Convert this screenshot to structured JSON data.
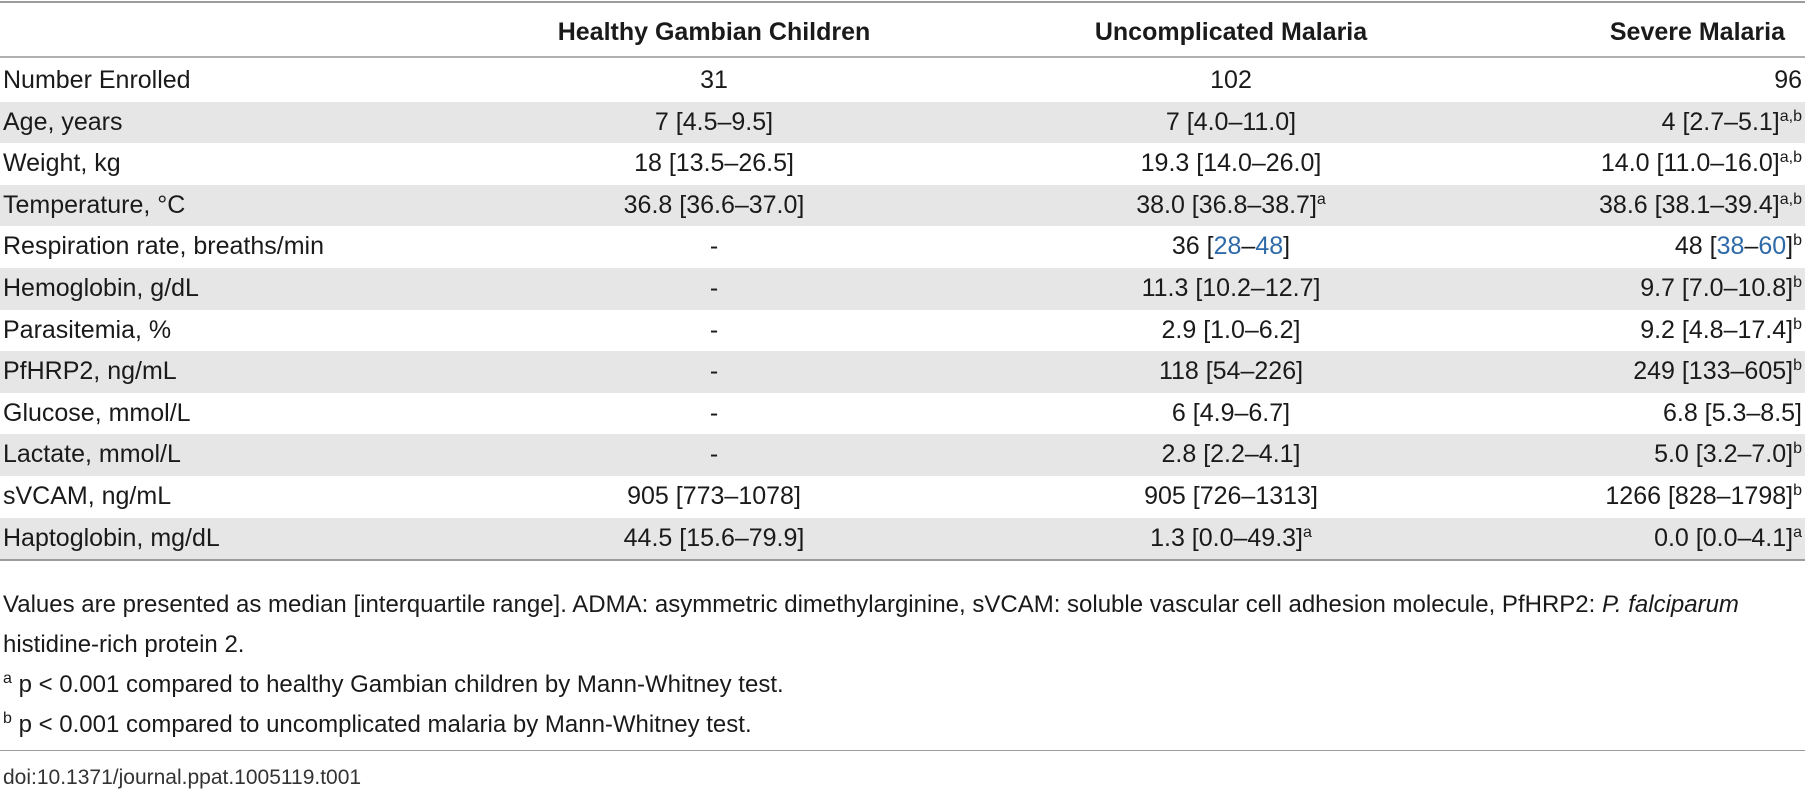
{
  "table": {
    "headers": [
      "",
      "Healthy Gambian Children",
      "Uncomplicated Malaria",
      "Severe Malaria"
    ],
    "rows": [
      {
        "label": "Number Enrolled",
        "healthy": "31",
        "healthy_sup": "",
        "uncomp": "102",
        "uncomp_sup": "",
        "severe": "96",
        "severe_sup": ""
      },
      {
        "label": "Age, years",
        "healthy": "7 [4.5–9.5]",
        "healthy_sup": "",
        "uncomp": "7 [4.0–11.0]",
        "uncomp_sup": "",
        "severe": "4 [2.7–5.1]",
        "severe_sup": "a,b"
      },
      {
        "label": "Weight, kg",
        "healthy": "18 [13.5–26.5]",
        "healthy_sup": "",
        "uncomp": "19.3 [14.0–26.0]",
        "uncomp_sup": "",
        "severe": "14.0 [11.0–16.0]",
        "severe_sup": "a,b"
      },
      {
        "label": "Temperature, °C",
        "healthy": "36.8 [36.6–37.0]",
        "healthy_sup": "",
        "uncomp": "38.0 [36.8–38.7]",
        "uncomp_sup": "a",
        "severe": "38.6 [38.1–39.4]",
        "severe_sup": "a,b"
      },
      {
        "label": "Respiration rate, breaths/min",
        "healthy": "-",
        "healthy_sup": "",
        "uncomp_pre": "36 [",
        "uncomp_link1": "28",
        "uncomp_dash": "–",
        "uncomp_link2": "48",
        "uncomp_post": "]",
        "uncomp_sup": "",
        "severe_pre": "48 [",
        "severe_link1": "38",
        "severe_dash": "–",
        "severe_link2": "60",
        "severe_post": "]",
        "severe_sup": "b"
      },
      {
        "label": "Hemoglobin, g/dL",
        "healthy": "-",
        "healthy_sup": "",
        "uncomp": "11.3 [10.2–12.7]",
        "uncomp_sup": "",
        "severe": "9.7 [7.0–10.8]",
        "severe_sup": "b"
      },
      {
        "label": "Parasitemia, %",
        "healthy": "-",
        "healthy_sup": "",
        "uncomp": "2.9 [1.0–6.2]",
        "uncomp_sup": "",
        "severe": "9.2 [4.8–17.4]",
        "severe_sup": "b"
      },
      {
        "label": "PfHRP2, ng/mL",
        "healthy": "-",
        "healthy_sup": "",
        "uncomp": "118 [54–226]",
        "uncomp_sup": "",
        "severe": "249 [133–605]",
        "severe_sup": "b"
      },
      {
        "label": "Glucose, mmol/L",
        "healthy": "-",
        "healthy_sup": "",
        "uncomp": "6 [4.9–6.7]",
        "uncomp_sup": "",
        "severe": "6.8 [5.3–8.5]",
        "severe_sup": ""
      },
      {
        "label": "Lactate, mmol/L",
        "healthy": "-",
        "healthy_sup": "",
        "uncomp": "2.8 [2.2–4.1]",
        "uncomp_sup": "",
        "severe": "5.0 [3.2–7.0]",
        "severe_sup": "b"
      },
      {
        "label": "sVCAM, ng/mL",
        "healthy": "905 [773–1078]",
        "healthy_sup": "",
        "uncomp": "905 [726–1313]",
        "uncomp_sup": "",
        "severe": "1266 [828–1798]",
        "severe_sup": "b"
      },
      {
        "label": "Haptoglobin, mg/dL",
        "healthy": "44.5 [15.6–79.9]",
        "healthy_sup": "",
        "uncomp": "1.3 [0.0–49.3]",
        "uncomp_sup": "a",
        "severe": "0.0 [0.0–4.1]",
        "severe_sup": "a"
      }
    ]
  },
  "notes": {
    "main_pre": "Values are presented as median [interquartile range]. ADMA: asymmetric dimethylarginine, sVCAM: soluble vascular cell adhesion molecule, PfHRP2: ",
    "main_italic": "P. falciparum",
    "main_post": " histidine-rich protein 2.",
    "footnote_a_mark": "a",
    "footnote_a": " p < 0.001 compared to healthy Gambian children by Mann-Whitney test.",
    "footnote_b_mark": "b",
    "footnote_b": " p < 0.001 compared to uncomplicated malaria by Mann-Whitney test."
  },
  "doi": "doi:10.1371/journal.ppat.1005119.t001",
  "colors": {
    "link": "#2f6aa8",
    "shade": "#e6e6e6",
    "rule": "#9c9c9c"
  }
}
